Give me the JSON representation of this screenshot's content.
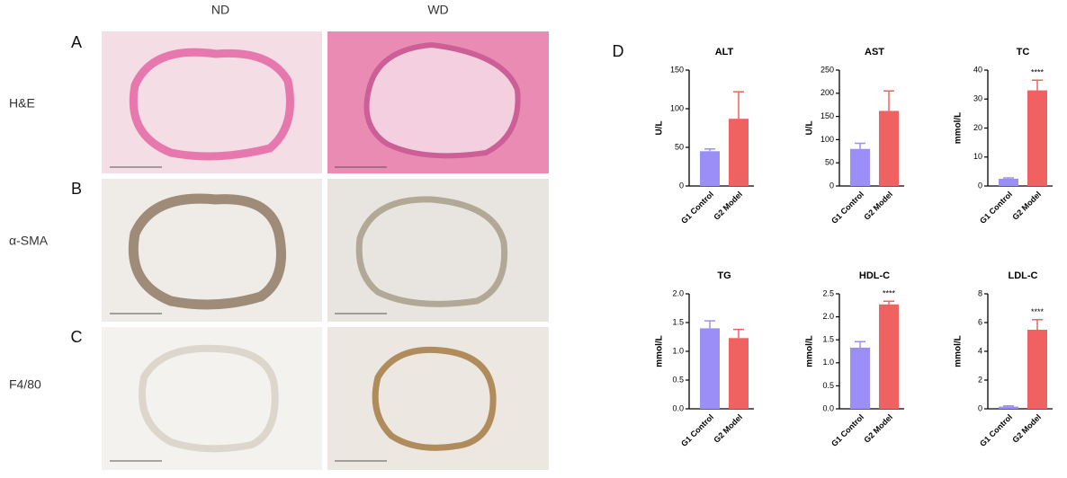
{
  "figure": {
    "columns": [
      "ND",
      "WD"
    ],
    "panels": [
      "A",
      "B",
      "C",
      "D"
    ],
    "rows": [
      "H&E",
      "α-SMA",
      "F4/80"
    ]
  },
  "chart_data": [
    {
      "type": "bar",
      "title": "ALT",
      "ylabel": "U/L",
      "categories": [
        "G1 Control",
        "G2 Model"
      ],
      "values": [
        45,
        87
      ],
      "errors": [
        3,
        35
      ],
      "colors": [
        "#9b8ff7",
        "#f06262"
      ],
      "ylim": [
        0,
        150
      ],
      "yticks": [
        0,
        50,
        100,
        150
      ]
    },
    {
      "type": "bar",
      "title": "AST",
      "ylabel": "U/L",
      "categories": [
        "G1 Control",
        "G2 Model"
      ],
      "values": [
        80,
        162
      ],
      "errors": [
        12,
        43
      ],
      "colors": [
        "#9b8ff7",
        "#f06262"
      ],
      "ylim": [
        0,
        250
      ],
      "yticks": [
        0,
        50,
        100,
        150,
        200,
        250
      ]
    },
    {
      "type": "bar",
      "title": "TC",
      "ylabel": "mmol/L",
      "categories": [
        "G1 Control",
        "G2 Model"
      ],
      "values": [
        2.5,
        33
      ],
      "errors": [
        0.3,
        3.5
      ],
      "colors": [
        "#9b8ff7",
        "#f06262"
      ],
      "ylim": [
        0,
        40
      ],
      "yticks": [
        0,
        10,
        20,
        30,
        40
      ],
      "annotation": "****"
    },
    {
      "type": "bar",
      "title": "TG",
      "ylabel": "mmol/L",
      "categories": [
        "G1 Control",
        "G2 Model"
      ],
      "values": [
        1.4,
        1.23
      ],
      "errors": [
        0.13,
        0.15
      ],
      "colors": [
        "#9b8ff7",
        "#f06262"
      ],
      "ylim": [
        0,
        2
      ],
      "yticks": [
        {
          "value": 0,
          "label": "0.0"
        },
        0.5,
        {
          "value": 1,
          "label": "1.0"
        },
        1.5,
        {
          "value": 2,
          "label": "2.0"
        }
      ]
    },
    {
      "type": "bar",
      "title": "HDL-C",
      "ylabel": "mmol/L",
      "categories": [
        "G1 Control",
        "G2 Model"
      ],
      "values": [
        1.33,
        2.27
      ],
      "errors": [
        0.13,
        0.07
      ],
      "colors": [
        "#9b8ff7",
        "#f06262"
      ],
      "ylim": [
        0,
        2.5
      ],
      "yticks": [
        {
          "value": 0,
          "label": "0.0"
        },
        0.5,
        {
          "value": 1,
          "label": "1.0"
        },
        1.5,
        {
          "value": 2,
          "label": "2.0"
        },
        2.5
      ],
      "annotation": "****"
    },
    {
      "type": "bar",
      "title": "LDL-C",
      "ylabel": "mmol/L",
      "categories": [
        "G1 Control",
        "G2 Model"
      ],
      "values": [
        0.15,
        5.5
      ],
      "errors": [
        0.05,
        0.7
      ],
      "colors": [
        "#9b8ff7",
        "#f06262"
      ],
      "ylim": [
        0,
        8
      ],
      "yticks": [
        0,
        2,
        4,
        6,
        8
      ],
      "annotation": "****"
    }
  ]
}
